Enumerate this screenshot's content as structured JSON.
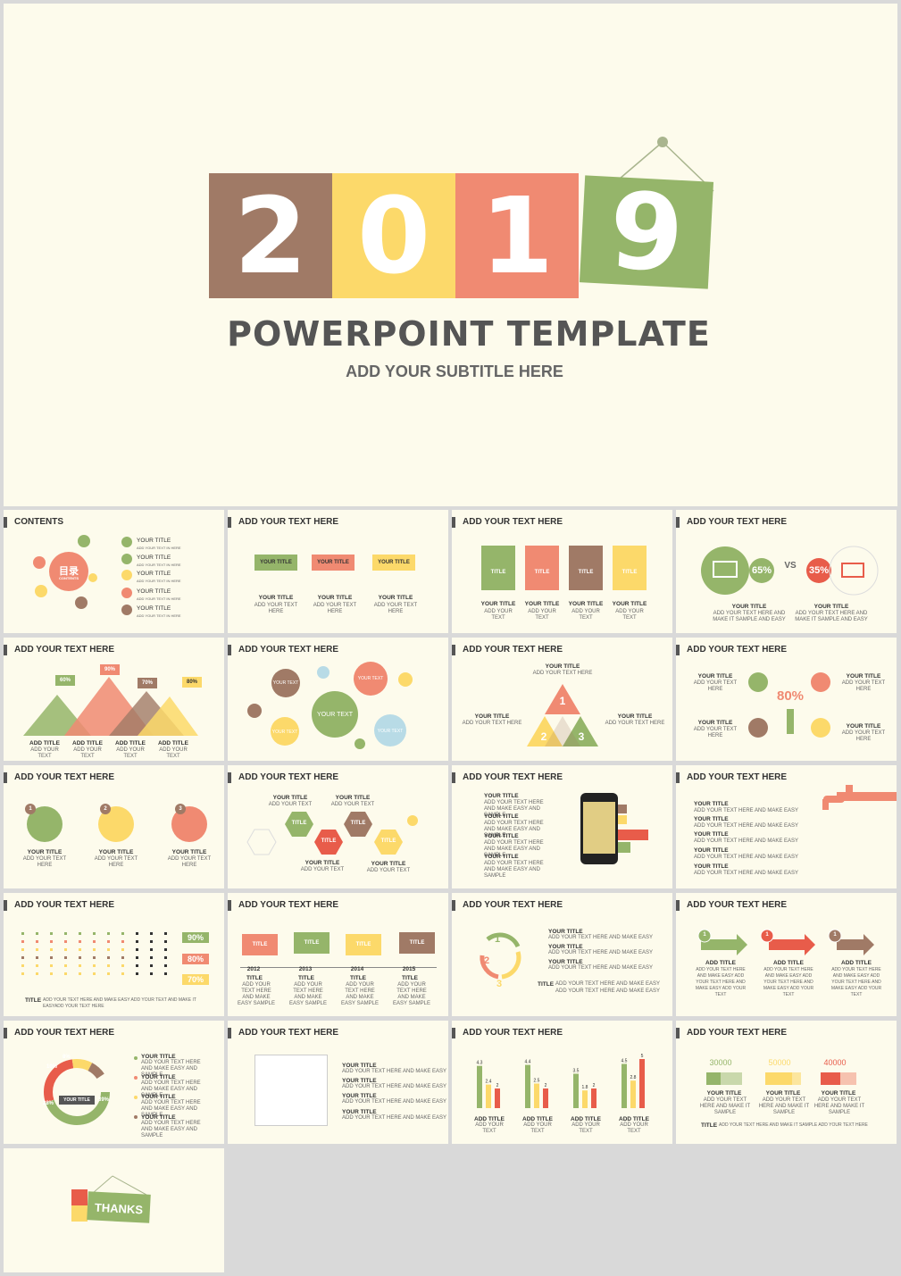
{
  "hero": {
    "digits": [
      "2",
      "0",
      "1",
      "9"
    ],
    "title": "POWERPOINT TEMPLATE",
    "subtitle": "ADD YOUR SUBTITLE HERE"
  },
  "slides": {
    "contents": {
      "header": "CONTENTS",
      "center_label": "目录",
      "center_sub": "CONTENTS",
      "items": [
        {
          "n": "1",
          "title": "YOUR TITLE",
          "sub": "ADD YOUR TEXT IN HERE"
        },
        {
          "n": "2",
          "title": "YOUR TITLE",
          "sub": "ADD YOUR TEXT IN HERE"
        },
        {
          "n": "3",
          "title": "YOUR TITLE",
          "sub": "ADD YOUR TEXT IN HERE"
        },
        {
          "n": "4",
          "title": "YOUR TITLE",
          "sub": "ADD YOUR TEXT IN HERE"
        },
        {
          "n": "5",
          "title": "YOUR TITLE",
          "sub": "ADD YOUR TEXT IN HERE"
        }
      ]
    },
    "s2": {
      "header": "ADD YOUR TEXT HERE",
      "cards": [
        {
          "label": "YOUR TITLE",
          "title": "YOUR TITLE",
          "text": "ADD YOUR TEXT HERE"
        },
        {
          "label": "YOUR TITLE",
          "title": "YOUR TITLE",
          "text": "ADD YOUR TEXT HERE"
        },
        {
          "label": "YOUR TITLE",
          "title": "YOUR TITLE",
          "text": "ADD YOUR TEXT HERE"
        }
      ]
    },
    "s3": {
      "header": "ADD YOUR TEXT HERE",
      "cards": [
        {
          "label": "TITLE",
          "n": "1",
          "title": "YOUR TITLE",
          "text": "ADD YOUR TEXT"
        },
        {
          "label": "TITLE",
          "n": "2",
          "title": "YOUR TITLE",
          "text": "ADD YOUR TEXT"
        },
        {
          "label": "TITLE",
          "n": "3",
          "title": "YOUR TITLE",
          "text": "ADD YOUR TEXT"
        },
        {
          "label": "TITLE",
          "n": "4",
          "title": "YOUR TITLE",
          "text": "ADD YOUR TEXT"
        }
      ]
    },
    "s4": {
      "header": "ADD YOUR TEXT HERE",
      "left_pct": "65%",
      "vs": "VS",
      "right_pct": "35%",
      "left_title": "YOUR TITLE",
      "left_text": "ADD YOUR TEXT HERE AND MAKE IT SAMPLE AND EASY",
      "right_title": "YOUR TITLE",
      "right_text": "ADD YOUR TEXT HERE AND MAKE IT SAMPLE AND EASY"
    },
    "s5": {
      "header": "ADD YOUR TEXT HERE",
      "peaks": [
        {
          "pct": "60%",
          "title": "ADD TITLE",
          "text": "ADD YOUR TEXT"
        },
        {
          "pct": "90%",
          "title": "ADD TITLE",
          "text": "ADD YOUR TEXT"
        },
        {
          "pct": "70%",
          "title": "ADD TITLE",
          "text": "ADD YOUR TEXT"
        },
        {
          "pct": "80%",
          "title": "ADD TITLE",
          "text": "ADD YOUR TEXT"
        }
      ]
    },
    "s6": {
      "header": "ADD YOUR TEXT HERE",
      "bubbles": [
        "YOUR TEXT",
        "YOUR TEXT",
        "YOUR TEXT",
        "YOUR TEXT",
        "YOUR TEXT"
      ]
    },
    "s7": {
      "header": "ADD YOUR TEXT HERE",
      "top_title": "YOUR TITLE",
      "top_text": "ADD YOUR TEXT HERE",
      "left_title": "YOUR TITLE",
      "left_text": "ADD YOUR TEXT HERE",
      "right_title": "YOUR TITLE",
      "right_text": "ADD YOUR TEXT HERE",
      "nums": [
        "1",
        "2",
        "3"
      ]
    },
    "s8": {
      "header": "ADD YOUR TEXT HERE",
      "pct": "80%",
      "title": "YOUR TITLE",
      "text": "ADD YOUR TEXT HERE"
    },
    "s9": {
      "header": "ADD YOUR TEXT HERE",
      "items": [
        {
          "n": "1",
          "title": "YOUR TITLE",
          "text": "ADD YOUR TEXT HERE"
        },
        {
          "n": "2",
          "title": "YOUR TITLE",
          "text": "ADD YOUR TEXT HERE"
        },
        {
          "n": "3",
          "title": "YOUR TITLE",
          "text": "ADD YOUR TEXT HERE"
        }
      ]
    },
    "s10": {
      "header": "ADD YOUR TEXT HERE",
      "hex": [
        "TITLE",
        "TITLE",
        "TITLE",
        "TITLE"
      ],
      "titles": [
        "YOUR TITLE",
        "YOUR TITLE",
        "YOUR TITLE",
        "YOUR TITLE"
      ],
      "text": "ADD YOUR TEXT"
    },
    "s11": {
      "header": "ADD YOUR TEXT HERE",
      "title": "YOUR TITLE",
      "text": "ADD YOUR TEXT HERE AND MAKE EASY AND SAMPLE"
    },
    "s12": {
      "header": "ADD YOUR TEXT HERE",
      "title": "YOUR TITLE",
      "text": "ADD YOUR TEXT HERE AND MAKE EASY"
    },
    "s13": {
      "header": "ADD YOUR TEXT HERE",
      "pcts": [
        "90%",
        "80%",
        "70%"
      ],
      "label": "TITLE",
      "text": "ADD YOUR TEXT HERE AND MAKE EASY ADD YOUR TEXT AND MAKE IT EASYADD YOUR TEXT HERE"
    },
    "s14": {
      "header": "ADD YOUR TEXT HERE",
      "flags": [
        "TITLE",
        "TITLE",
        "TITLE",
        "TITLE"
      ],
      "years": [
        "2012",
        "2013",
        "2014",
        "2015"
      ],
      "title": "TITLE",
      "text": "ADD YOUR TEXT HERE AND MAKE EASY SAMPLE"
    },
    "s15": {
      "header": "ADD YOUR TEXT HERE",
      "nums": [
        "1",
        "2",
        "3"
      ],
      "title": "YOUR TITLE",
      "text": "ADD YOUR TEXT HERE AND MAKE EASY",
      "label": "TITLE"
    },
    "s16": {
      "header": "ADD YOUR TEXT HERE",
      "nums": [
        "1",
        "1",
        "1"
      ],
      "title": "ADD TITLE",
      "text": "ADD YOUR TEXT HERE AND MAKE EASY ADD YOUR TEXT HERE AND MAKE EASY ADD YOUR TEXT"
    },
    "s17": {
      "header": "ADD YOUR TEXT HERE",
      "pcts": [
        "8%",
        "10%",
        "28%",
        "39%"
      ],
      "center": "YOUR TITLE",
      "title": "YOUR TITLE",
      "text": "ADD YOUR TEXT HERE AND MAKE EASY AND SAMPLE"
    },
    "s18": {
      "header": "ADD YOUR TEXT HERE",
      "title": "YOUR TITLE",
      "text": "ADD YOUR TEXT HERE AND MAKE EASY"
    },
    "s19": {
      "header": "ADD YOUR TEXT HERE",
      "title": "ADD TITLE",
      "text": "ADD YOUR TEXT",
      "groups": [
        {
          "values": [
            4.3,
            2.4,
            2
          ],
          "labels": [
            "4.3",
            "2.4",
            "2"
          ]
        },
        {
          "values": [
            4.4,
            2.5,
            2
          ],
          "labels": [
            "4.4",
            "2.5",
            "2"
          ]
        },
        {
          "values": [
            3.5,
            1.8,
            2
          ],
          "labels": [
            "3.5",
            "1.8",
            "2"
          ]
        },
        {
          "values": [
            4.5,
            2.8,
            5
          ],
          "labels": [
            "4.5",
            "2.8",
            "5"
          ]
        }
      ]
    },
    "s20": {
      "header": "ADD YOUR TEXT HERE",
      "values": [
        "30000",
        "50000",
        "40000"
      ],
      "title": "YOUR TITLE",
      "text": "ADD YOUR TEXT HERE AND MAKE IT SAMPLE",
      "label": "TITLE",
      "footer": "ADD YOUR TEXT HERE AND MAKE IT SAMPLE ADD YOUR TEXT HERE"
    },
    "thanks": {
      "label": "THANKS"
    }
  },
  "colors": {
    "brown": "#a07a66",
    "yellow": "#fcd96a",
    "salmon": "#f08a72",
    "green": "#95b56a",
    "red": "#e85c4a",
    "bg": "#fdfbec"
  }
}
